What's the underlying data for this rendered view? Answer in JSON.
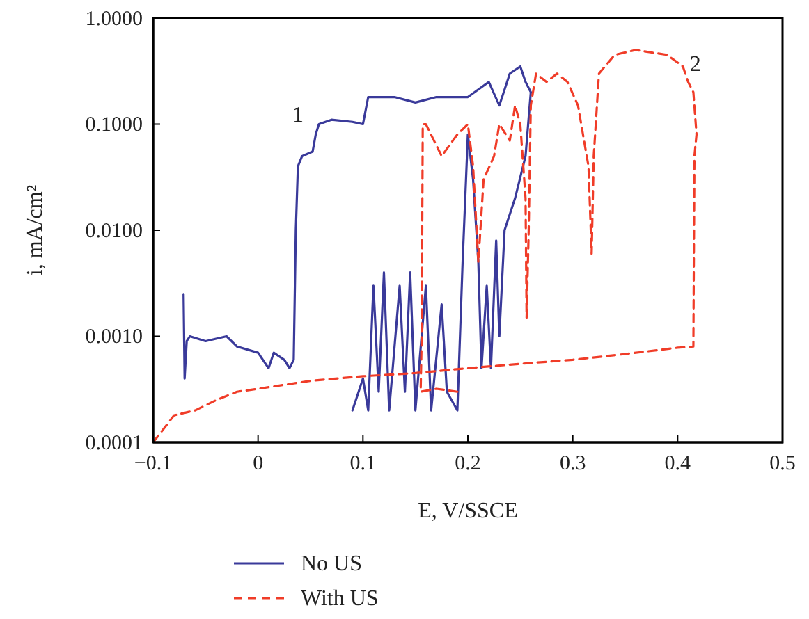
{
  "chart_data": {
    "type": "line",
    "xlabel": "E, V/SSCE",
    "ylabel": "i, mA/cm²",
    "log": "y",
    "xlim": [
      -0.1,
      0.5
    ],
    "xticks": [
      {
        "value": -0.1,
        "label": "−0.1"
      },
      0,
      0.1,
      0.2,
      0.3,
      0.4,
      0.5
    ],
    "ylim": [
      0.0001,
      1
    ],
    "yticks": [
      {
        "value": 0.0001,
        "label": "0.0001"
      },
      {
        "value": 0.001,
        "label": "0.0010"
      },
      {
        "value": 0.01,
        "label": "0.0100"
      },
      {
        "value": 0.1,
        "label": "0.1000"
      },
      {
        "value": 1,
        "label": "1.0000"
      }
    ],
    "grid": false,
    "legend": "bottom",
    "marker": "none",
    "annotations": [
      {
        "text": "1",
        "x": 0.058,
        "y": 0.1
      },
      {
        "text": "2",
        "x": 0.405,
        "y": 0.35
      }
    ],
    "series": [
      {
        "name": "No US",
        "color": "#3a3a9a",
        "line_style": "solid",
        "x": [
          -0.071,
          -0.07,
          -0.068,
          -0.065,
          -0.05,
          -0.03,
          -0.02,
          0,
          0.01,
          0.015,
          0.025,
          0.03,
          0.034,
          0.036,
          0.038,
          0.042,
          0.052,
          0.055,
          0.058,
          0.07,
          0.09,
          0.1,
          0.105,
          0.13,
          0.15,
          0.17,
          0.2,
          0.22,
          0.23,
          0.24,
          0.25,
          0.255,
          0.26,
          0.255,
          0.245,
          0.235,
          0.23,
          0.227,
          0.222,
          0.218,
          0.213,
          0.21,
          0.205,
          0.2,
          0.195,
          0.19,
          0.18,
          0.175,
          0.165,
          0.16,
          0.15,
          0.145,
          0.14,
          0.135,
          0.125,
          0.12,
          0.115,
          0.11,
          0.105,
          0.1,
          0.09
        ],
        "values": [
          0.0025,
          0.0004,
          0.0009,
          0.001,
          0.0009,
          0.001,
          0.0008,
          0.0007,
          0.0005,
          0.0007,
          0.0006,
          0.0005,
          0.0006,
          0.01,
          0.04,
          0.05,
          0.055,
          0.08,
          0.1,
          0.11,
          0.105,
          0.1,
          0.18,
          0.18,
          0.16,
          0.18,
          0.18,
          0.25,
          0.15,
          0.3,
          0.35,
          0.25,
          0.2,
          0.05,
          0.02,
          0.01,
          0.001,
          0.008,
          0.0005,
          0.003,
          0.0005,
          0.005,
          0.03,
          0.08,
          0.005,
          0.0002,
          0.0003,
          0.002,
          0.0002,
          0.003,
          0.0002,
          0.004,
          0.0003,
          0.003,
          0.0002,
          0.004,
          0.0003,
          0.003,
          0.0002,
          0.0004,
          0.0002
        ]
      },
      {
        "name": "With US",
        "color": "#f03c28",
        "line_style": "dashed",
        "x": [
          -0.1,
          -0.08,
          -0.06,
          -0.04,
          -0.02,
          0,
          0.05,
          0.1,
          0.15,
          0.2,
          0.25,
          0.3,
          0.35,
          0.4,
          0.415,
          0.416,
          0.418,
          0.415,
          0.41,
          0.405,
          0.39,
          0.36,
          0.34,
          0.325,
          0.32,
          0.318,
          0.315,
          0.305,
          0.295,
          0.285,
          0.275,
          0.265,
          0.26,
          0.258,
          0.256,
          0.255,
          0.25,
          0.245,
          0.24,
          0.23,
          0.225,
          0.215,
          0.21,
          0.205,
          0.2,
          0.19,
          0.175,
          0.16,
          0.157,
          0.156,
          0.155,
          0.17,
          0.19
        ],
        "values": [
          0.0001,
          0.00018,
          0.0002,
          0.00025,
          0.0003,
          0.00032,
          0.00038,
          0.00042,
          0.00045,
          0.0005,
          0.00055,
          0.0006,
          0.00068,
          0.00078,
          0.0008,
          0.05,
          0.08,
          0.2,
          0.25,
          0.35,
          0.45,
          0.5,
          0.45,
          0.3,
          0.05,
          0.006,
          0.04,
          0.15,
          0.25,
          0.3,
          0.25,
          0.3,
          0.15,
          0.01,
          0.0015,
          0.02,
          0.1,
          0.15,
          0.07,
          0.1,
          0.05,
          0.03,
          0.005,
          0.04,
          0.1,
          0.08,
          0.05,
          0.1,
          0.1,
          0.001,
          0.0003,
          0.00032,
          0.0003
        ]
      }
    ]
  }
}
